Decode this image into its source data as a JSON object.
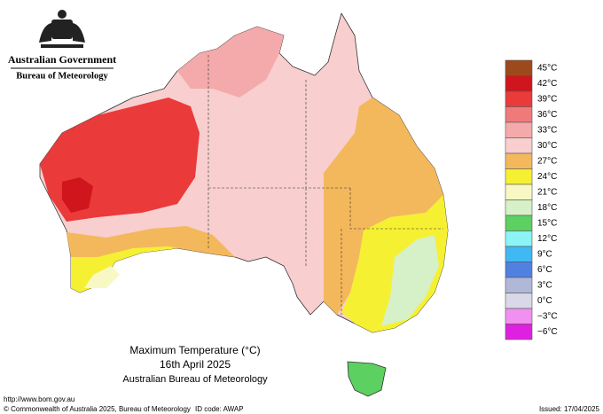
{
  "header": {
    "government": "Australian Government",
    "agency": "Bureau of Meteorology"
  },
  "title": {
    "line1": "Maximum Temperature (°C)",
    "line2": "16th April 2025",
    "line3": "Australian Bureau of Meteorology"
  },
  "legend": {
    "items": [
      {
        "label": "45°C",
        "color": "#9c4a1c"
      },
      {
        "label": "42°C",
        "color": "#d0161c"
      },
      {
        "label": "39°C",
        "color": "#ea3a3a"
      },
      {
        "label": "36°C",
        "color": "#f07a7a"
      },
      {
        "label": "33°C",
        "color": "#f4aaaa"
      },
      {
        "label": "30°C",
        "color": "#f8cece"
      },
      {
        "label": "27°C",
        "color": "#f4b85c"
      },
      {
        "label": "24°C",
        "color": "#f6f032"
      },
      {
        "label": "21°C",
        "color": "#f8f8c4"
      },
      {
        "label": "18°C",
        "color": "#d6f0c8"
      },
      {
        "label": "15°C",
        "color": "#5cd060"
      },
      {
        "label": "12°C",
        "color": "#8cf4f4"
      },
      {
        "label": "9°C",
        "color": "#40b8f4"
      },
      {
        "label": "6°C",
        "color": "#5080e0"
      },
      {
        "label": "3°C",
        "color": "#b0b8d8"
      },
      {
        "label": "0°C",
        "color": "#d8d8e8"
      },
      {
        "label": "−3°C",
        "color": "#f090f0"
      },
      {
        "label": "−6°C",
        "color": "#e020e0"
      }
    ]
  },
  "footer": {
    "url": "http://www.bom.gov.au",
    "copyright": "© Commonwealth of Australia 2025, Bureau of Meteorology",
    "id_code": "ID code: AWAP",
    "issued": "Issued: 17/04/2025"
  }
}
